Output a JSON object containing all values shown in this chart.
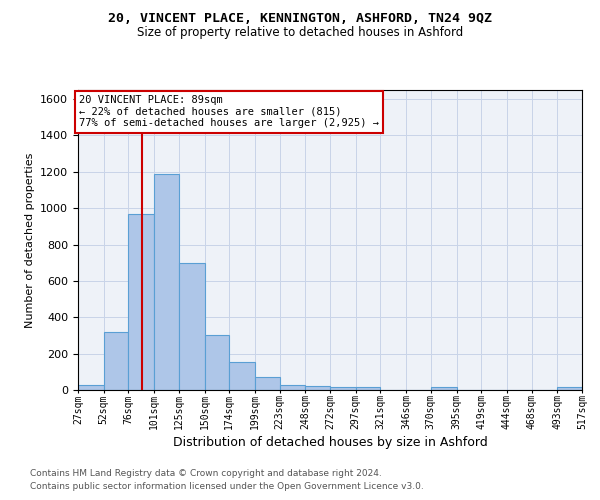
{
  "title1": "20, VINCENT PLACE, KENNINGTON, ASHFORD, TN24 9QZ",
  "title2": "Size of property relative to detached houses in Ashford",
  "xlabel": "Distribution of detached houses by size in Ashford",
  "ylabel": "Number of detached properties",
  "footer1": "Contains HM Land Registry data © Crown copyright and database right 2024.",
  "footer2": "Contains public sector information licensed under the Open Government Licence v3.0.",
  "annotation_line1": "20 VINCENT PLACE: 89sqm",
  "annotation_line2": "← 22% of detached houses are smaller (815)",
  "annotation_line3": "77% of semi-detached houses are larger (2,925) →",
  "property_size": 89,
  "bar_color": "#aec6e8",
  "bar_edge_color": "#5a9fd4",
  "vline_color": "#cc0000",
  "annotation_box_edgecolor": "#cc0000",
  "grid_color": "#c8d4e8",
  "background_color": "#eef2f8",
  "bins": [
    27,
    52,
    76,
    101,
    125,
    150,
    174,
    199,
    223,
    248,
    272,
    297,
    321,
    346,
    370,
    395,
    419,
    444,
    468,
    493,
    517
  ],
  "counts": [
    30,
    320,
    970,
    1190,
    700,
    305,
    155,
    70,
    30,
    20,
    15,
    15,
    0,
    0,
    15,
    0,
    0,
    0,
    0,
    15
  ],
  "ylim": [
    0,
    1650
  ],
  "yticks": [
    0,
    200,
    400,
    600,
    800,
    1000,
    1200,
    1400,
    1600
  ]
}
